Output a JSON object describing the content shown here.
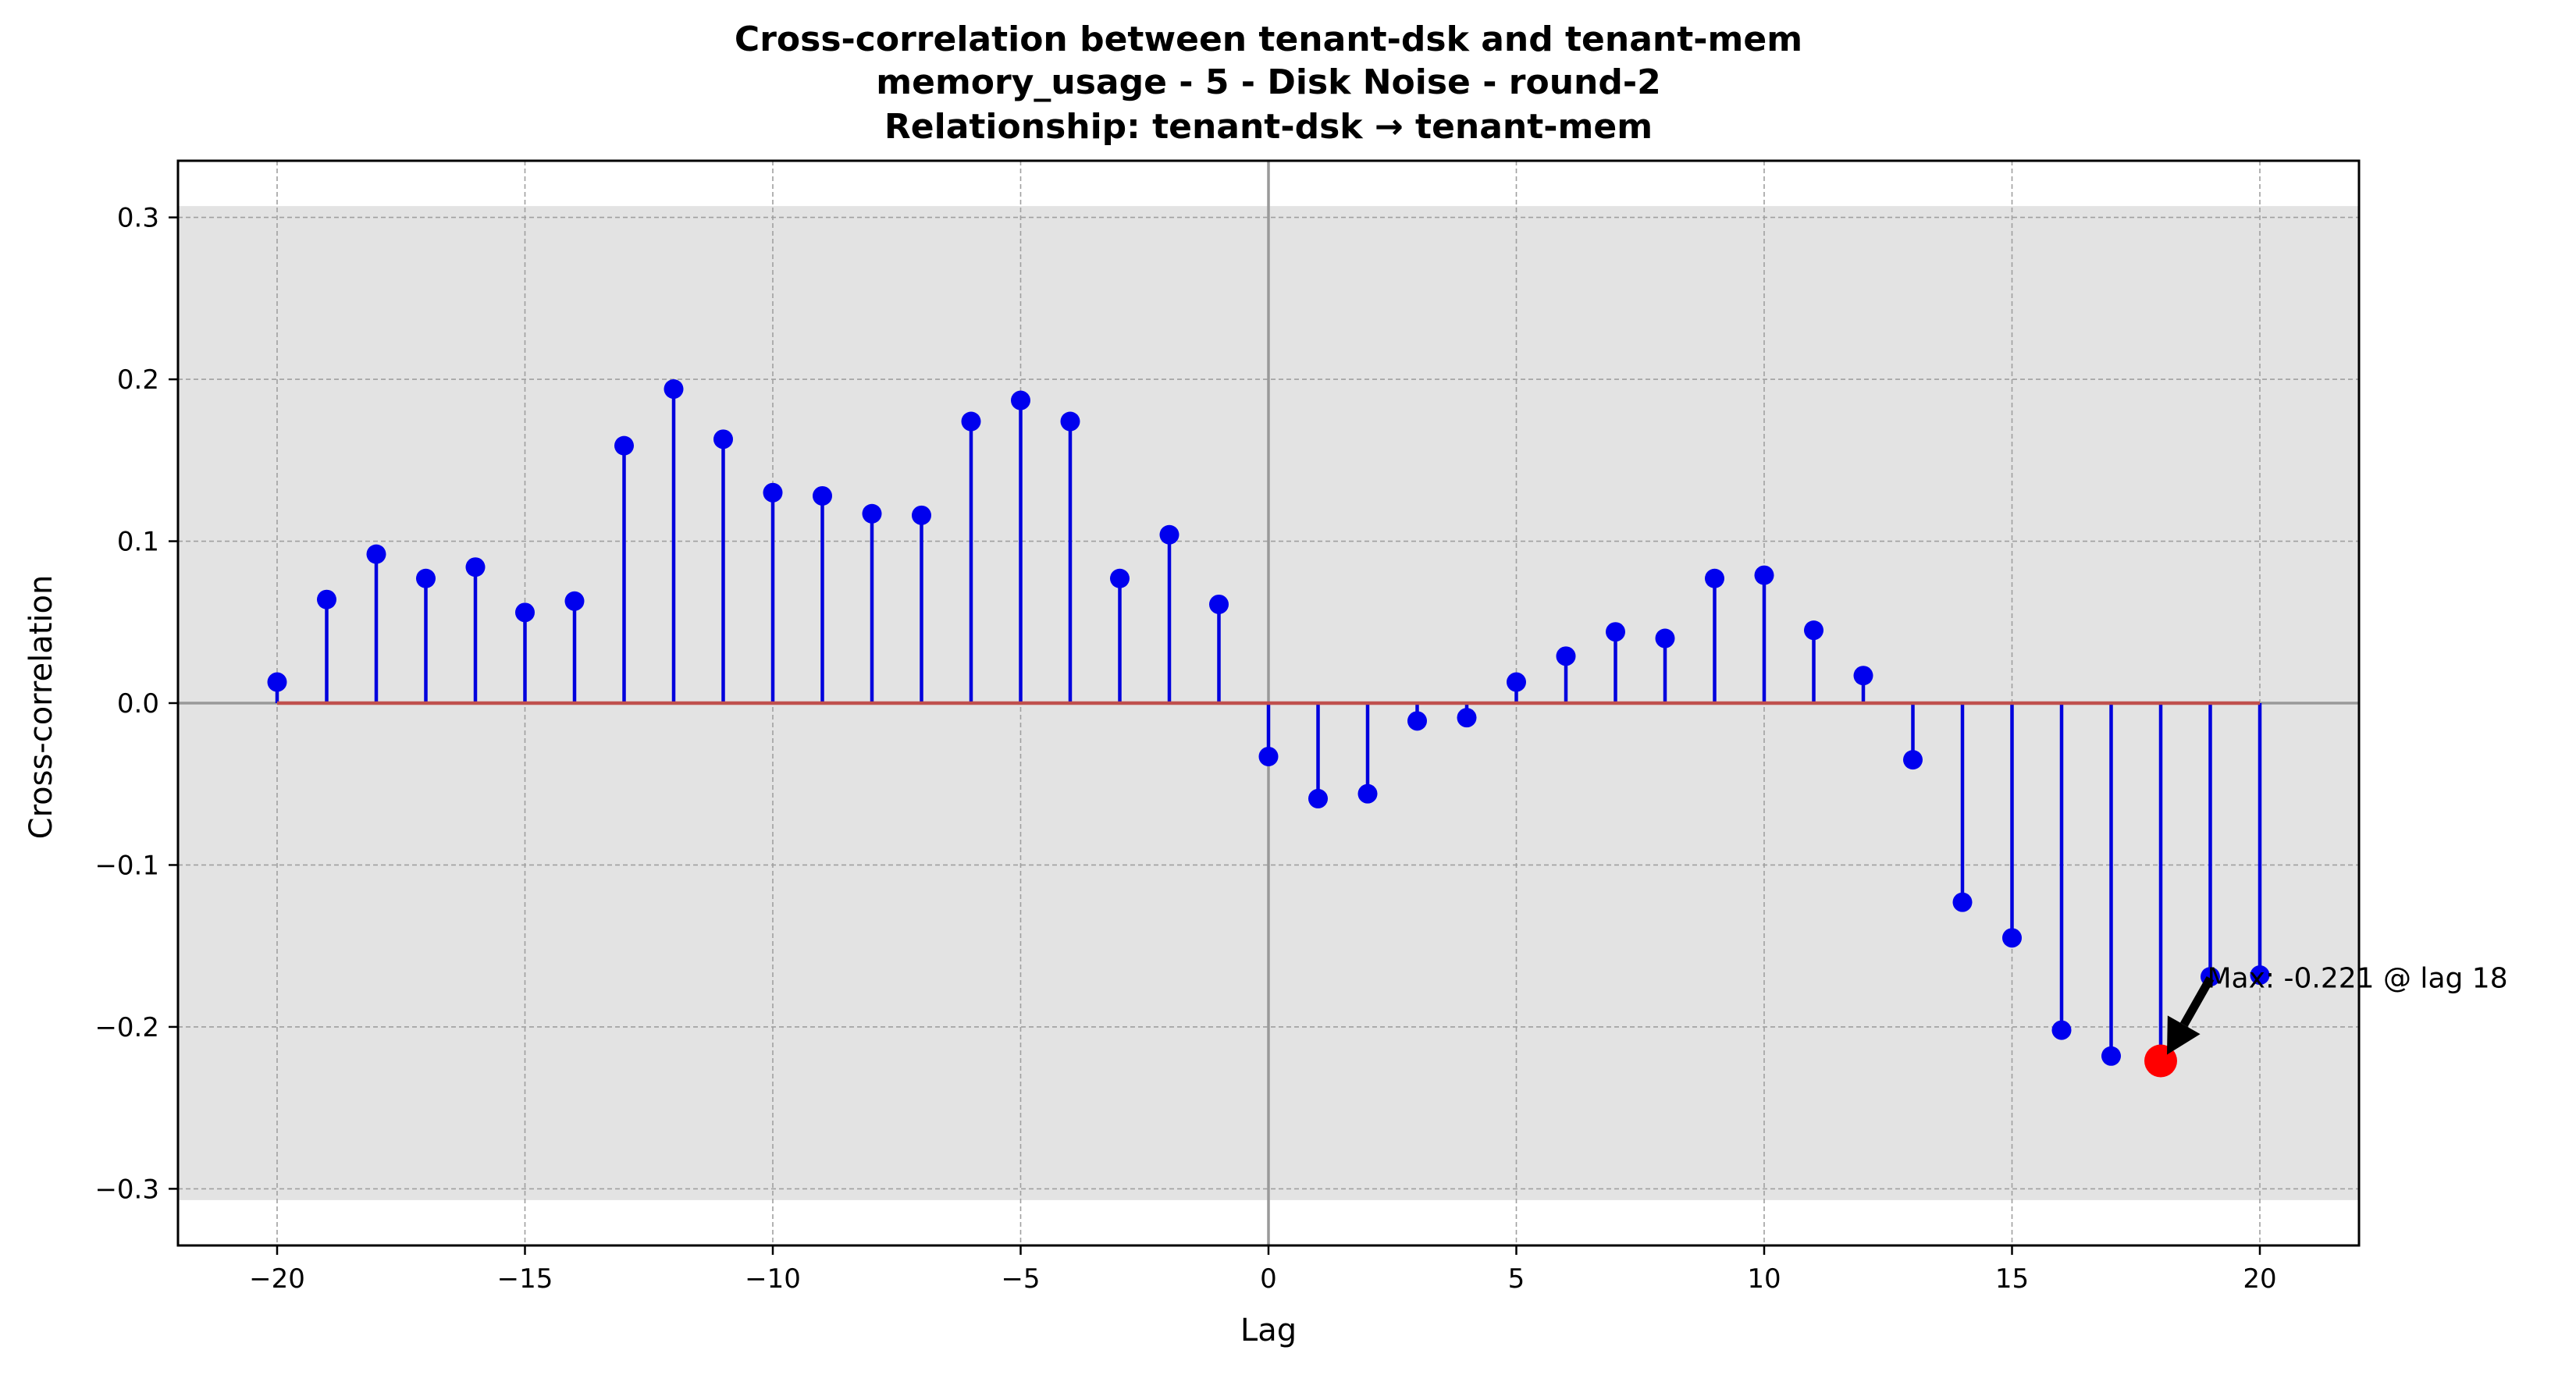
{
  "chart_data": {
    "type": "stem",
    "title": [
      "Cross-correlation between tenant-dsk and tenant-mem",
      "memory_usage - 5 - Disk Noise - round-2",
      "Relationship: tenant-dsk → tenant-mem"
    ],
    "xlabel": "Lag",
    "ylabel": "Cross-correlation",
    "xlim": [
      -22,
      22
    ],
    "ylim": [
      -0.335,
      0.335
    ],
    "xticks": [
      -20,
      -15,
      -10,
      -5,
      0,
      5,
      10,
      15,
      20
    ],
    "xtick_labels": [
      "−20",
      "−15",
      "−10",
      "−5",
      "0",
      "5",
      "10",
      "15",
      "20"
    ],
    "yticks": [
      -0.3,
      -0.2,
      -0.1,
      0.0,
      0.1,
      0.2,
      0.3
    ],
    "ytick_labels": [
      "−0.3",
      "−0.2",
      "−0.1",
      "0.0",
      "0.1",
      "0.2",
      "0.3"
    ],
    "grid": true,
    "significance_band": [
      -0.307,
      0.307
    ],
    "lags": [
      -20,
      -19,
      -18,
      -17,
      -16,
      -15,
      -14,
      -13,
      -12,
      -11,
      -10,
      -9,
      -8,
      -7,
      -6,
      -5,
      -4,
      -3,
      -2,
      -1,
      0,
      1,
      2,
      3,
      4,
      5,
      6,
      7,
      8,
      9,
      10,
      11,
      12,
      13,
      14,
      15,
      16,
      17,
      18,
      19,
      20
    ],
    "values": [
      0.013,
      0.064,
      0.092,
      0.077,
      0.084,
      0.056,
      0.063,
      0.159,
      0.194,
      0.163,
      0.13,
      0.128,
      0.117,
      0.116,
      0.174,
      0.187,
      0.174,
      0.077,
      0.104,
      0.061,
      -0.033,
      -0.059,
      -0.056,
      -0.011,
      -0.009,
      0.013,
      0.029,
      0.044,
      0.04,
      0.077,
      0.079,
      0.045,
      0.017,
      -0.035,
      -0.123,
      -0.145,
      -0.202,
      -0.218,
      -0.221,
      -0.169,
      -0.168
    ],
    "max_point": {
      "lag": 18,
      "value": -0.221
    },
    "annotation": "Max: -0.221 @ lag 18",
    "colors": {
      "stem": "#0000dd",
      "marker": "#0000ee",
      "baseline": "#c0504d",
      "max_marker": "#ff0000",
      "band": "#e3e3e3",
      "grid": "#a0a0a0",
      "zero_lines": "#999999",
      "arrow": "#000000"
    }
  }
}
